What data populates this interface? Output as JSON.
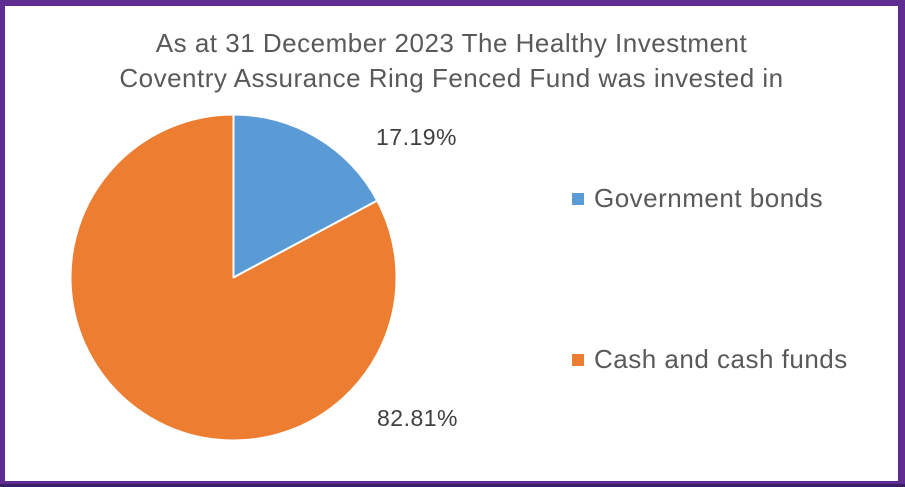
{
  "frame": {
    "border_color": "#5F2D91",
    "bottom_accent_color": "#3A1F66",
    "background": "#FFFFFF"
  },
  "chart_data": {
    "type": "pie",
    "title": "As at 31 December 2023 The Healthy Investment Coventry Assurance Ring Fenced Fund was invested in",
    "title_line1": "As at 31 December 2023 The Healthy Investment",
    "title_line2": "Coventry Assurance Ring Fenced Fund was invested in",
    "title_color": "#595959",
    "start_angle_deg": 0,
    "direction": "clockwise",
    "slice_border_color": "#FFFFFF",
    "legend_position": "right",
    "data_label_color": "#404040",
    "slices": [
      {
        "name": "Government bonds",
        "value": 17.19,
        "label": "17.19%",
        "color": "#5B9BD5"
      },
      {
        "name": "Cash and cash funds",
        "value": 82.81,
        "label": "82.81%",
        "color": "#ED7D31"
      }
    ]
  }
}
